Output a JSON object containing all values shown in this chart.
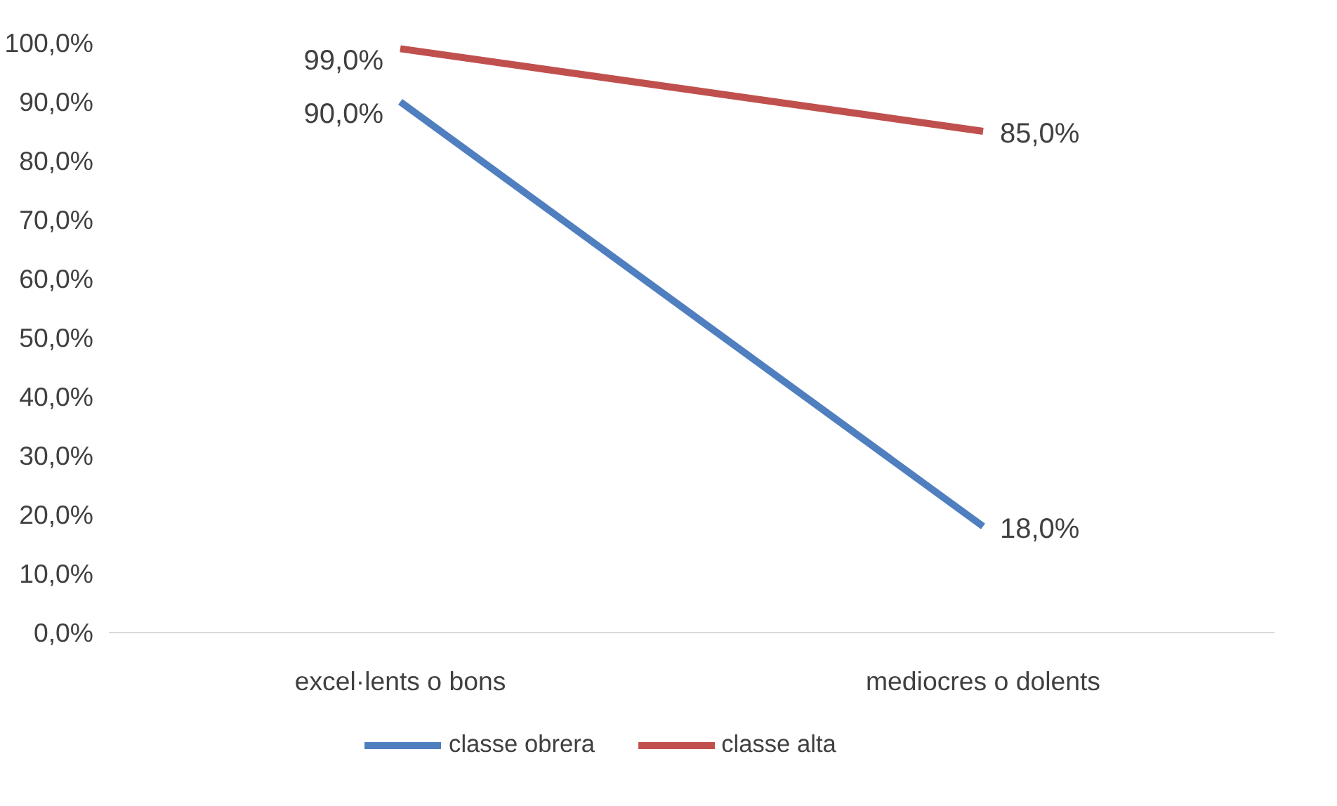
{
  "chart_data": {
    "type": "line",
    "categories": [
      "excel·lents o bons",
      "mediocres o dolents"
    ],
    "series": [
      {
        "name": "classe obrera",
        "color": "#4f7fbf",
        "values": [
          90,
          18
        ],
        "value_labels": [
          "90,0%",
          "18,0%"
        ]
      },
      {
        "name": "classe alta",
        "color": "#c0504d",
        "values": [
          99,
          85
        ],
        "value_labels": [
          "99,0%",
          "85,0%"
        ]
      }
    ],
    "ylim": [
      0,
      100
    ],
    "yticks": [
      {
        "value": 0,
        "label": "0,0%"
      },
      {
        "value": 10,
        "label": "10,0%"
      },
      {
        "value": 20,
        "label": "20,0%"
      },
      {
        "value": 30,
        "label": "30,0%"
      },
      {
        "value": 40,
        "label": "40,0%"
      },
      {
        "value": 50,
        "label": "50,0%"
      },
      {
        "value": 60,
        "label": "60,0%"
      },
      {
        "value": 70,
        "label": "70,0%"
      },
      {
        "value": 80,
        "label": "80,0%"
      },
      {
        "value": 90,
        "label": "90,0%"
      },
      {
        "value": 100,
        "label": "100,0%"
      }
    ],
    "grid": false,
    "legend": "bottom",
    "marker": "none",
    "line_style": "solid"
  }
}
